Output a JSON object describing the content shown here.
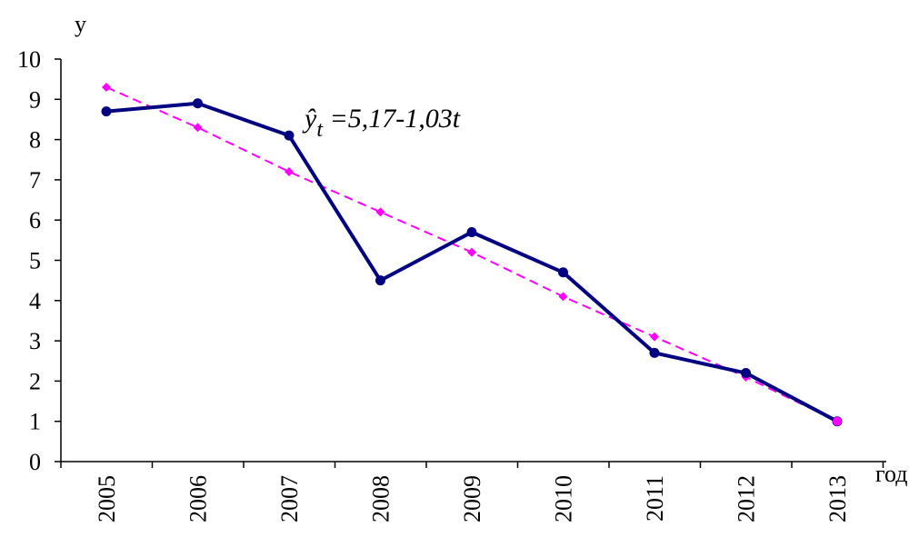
{
  "chart_data": {
    "type": "line",
    "ylabel": "y",
    "xlabel": "год",
    "ylim": [
      0,
      10
    ],
    "y_ticks": [
      "0",
      "1",
      "2",
      "3",
      "4",
      "5",
      "6",
      "7",
      "8",
      "9",
      "10"
    ],
    "categories": [
      "2005",
      "2006",
      "2007",
      "2008",
      "2009",
      "2010",
      "2011",
      "2012",
      "2013"
    ],
    "series": [
      {
        "values": [
          8.7,
          8.9,
          8.1,
          4.5,
          5.7,
          4.7,
          2.7,
          2.2,
          1.0
        ],
        "color": "#000080",
        "style": "solid",
        "marker": "circle"
      },
      {
        "values": [
          9.3,
          8.3,
          7.2,
          6.2,
          5.2,
          4.1,
          3.1,
          2.1,
          1.0
        ],
        "color": "#ff00ff",
        "style": "dashed",
        "marker": "diamond"
      }
    ],
    "annotation": {
      "y_hat": "ŷ",
      "subscript": "t",
      "text": " =5,17-1,03t"
    },
    "grid": false,
    "legend": "none"
  }
}
